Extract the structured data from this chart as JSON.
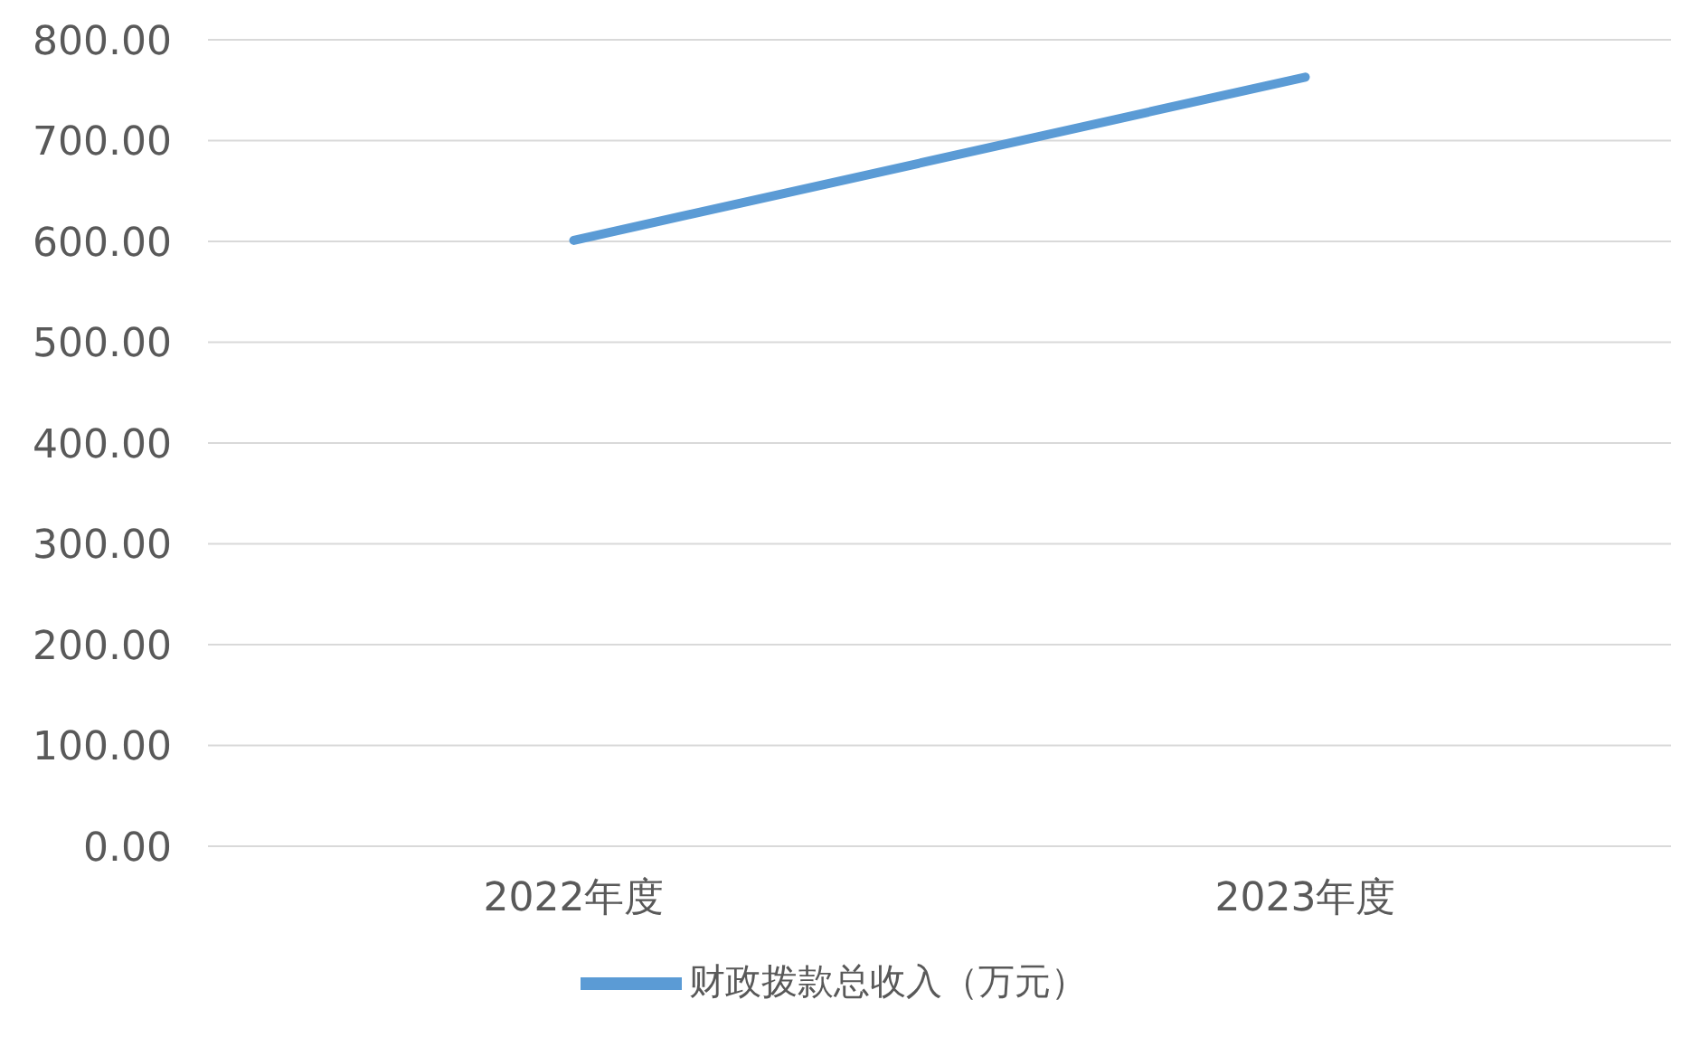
{
  "chart_data": {
    "type": "line",
    "categories": [
      "2022年度",
      "2023年度"
    ],
    "series": [
      {
        "name": "财政拨款总收入（万元）",
        "color": "#5b9bd5",
        "values": [
          601,
          763
        ]
      }
    ],
    "ylim": [
      0,
      800
    ],
    "yticks": [
      {
        "value": 0,
        "label": "0.00"
      },
      {
        "value": 100,
        "label": "100.00"
      },
      {
        "value": 200,
        "label": "200.00"
      },
      {
        "value": 300,
        "label": "300.00"
      },
      {
        "value": 400,
        "label": "400.00"
      },
      {
        "value": 500,
        "label": "500.00"
      },
      {
        "value": 600,
        "label": "600.00"
      },
      {
        "value": 700,
        "label": "700.00"
      },
      {
        "value": 800,
        "label": "800.00"
      }
    ],
    "grid": "y",
    "legend": "bottom",
    "marker": "none",
    "line_style": "solid"
  }
}
